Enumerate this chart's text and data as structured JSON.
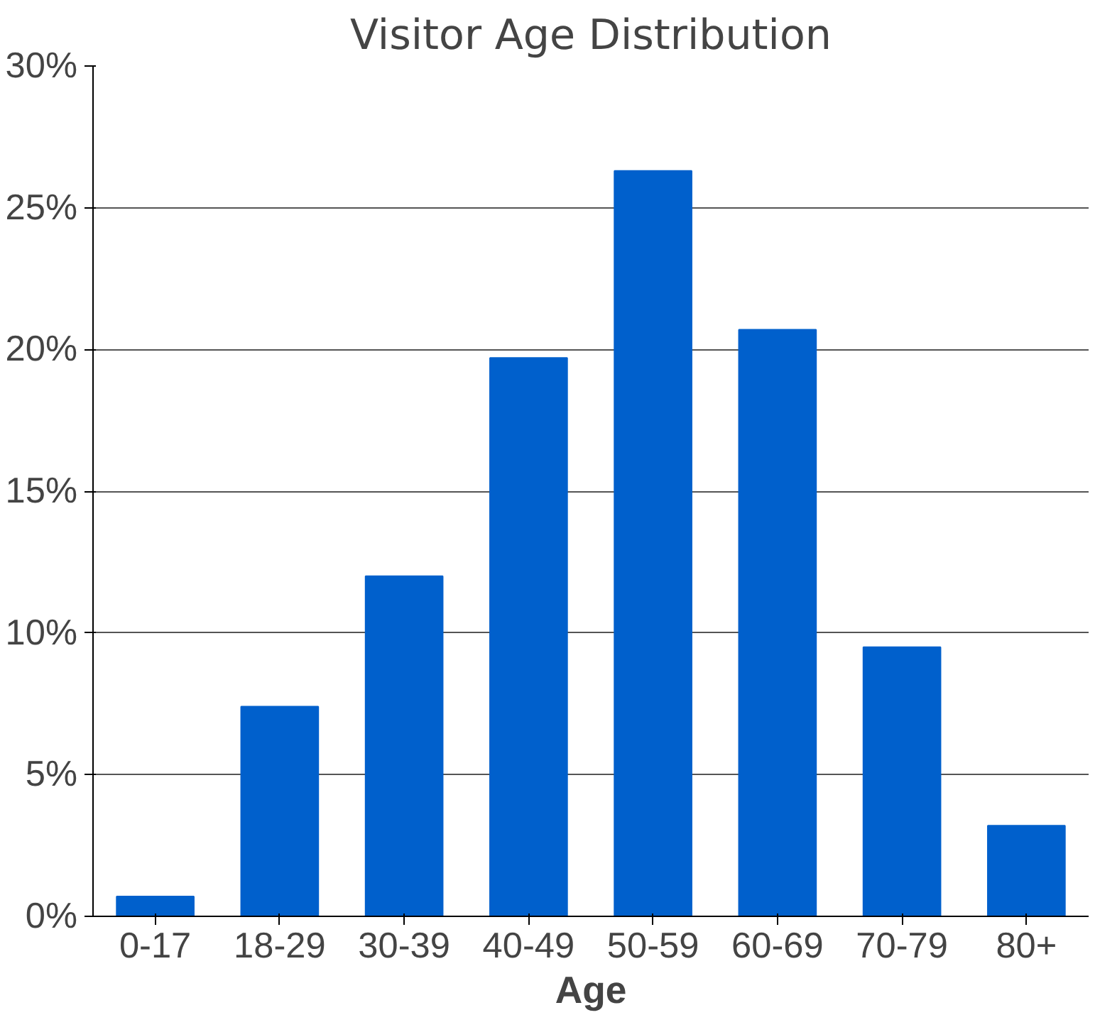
{
  "chart_data": {
    "type": "bar",
    "title": "Visitor Age Distribution",
    "xlabel": "Age",
    "categories": [
      "0-17",
      "18-29",
      "30-39",
      "40-49",
      "50-59",
      "60-69",
      "70-79",
      "80+"
    ],
    "values": [
      0.7,
      7.4,
      12.0,
      19.7,
      26.3,
      20.7,
      9.5,
      3.2
    ],
    "color": "#0060cc",
    "ylim": [
      0,
      30
    ],
    "yticks": [
      {
        "value": 0,
        "label": "0%"
      },
      {
        "value": 5,
        "label": "5%"
      },
      {
        "value": 10,
        "label": "10%"
      },
      {
        "value": 15,
        "label": "15%"
      },
      {
        "value": 20,
        "label": "20%"
      },
      {
        "value": 25,
        "label": "25%"
      },
      {
        "value": 30,
        "label": "30%"
      }
    ],
    "grid": "y"
  }
}
